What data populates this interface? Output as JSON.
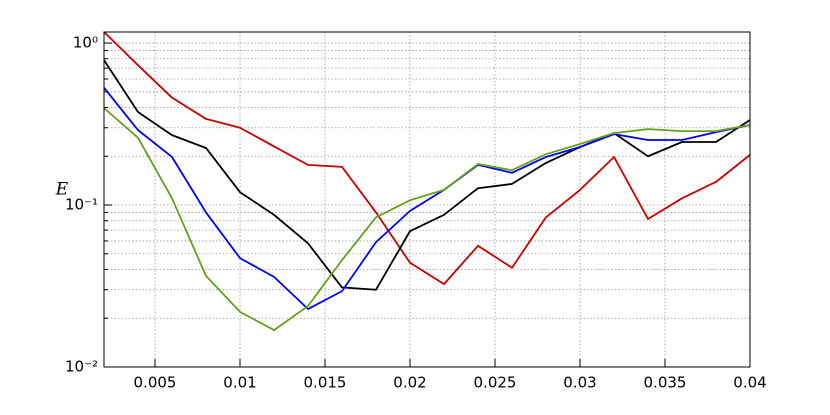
{
  "chart_data": {
    "type": "line",
    "ylabel": "E",
    "x": [
      0.002,
      0.004,
      0.006,
      0.008,
      0.01,
      0.012,
      0.014,
      0.016,
      0.018,
      0.02,
      0.022,
      0.024,
      0.026,
      0.028,
      0.03,
      0.032,
      0.034,
      0.036,
      0.038,
      0.04
    ],
    "series": [
      {
        "color": "#cc0000",
        "values": [
          1.17,
          0.73,
          0.46,
          0.34,
          0.3,
          0.23,
          0.177,
          0.172,
          0.09,
          0.044,
          0.0325,
          0.056,
          0.041,
          0.084,
          0.124,
          0.198,
          0.082,
          0.11,
          0.139,
          0.204
        ]
      },
      {
        "color": "#000000",
        "values": [
          0.785,
          0.375,
          0.27,
          0.225,
          0.12,
          0.087,
          0.058,
          0.031,
          0.03,
          0.069,
          0.087,
          0.127,
          0.135,
          0.182,
          0.228,
          0.278,
          0.2,
          0.245,
          0.245,
          0.335
        ]
      },
      {
        "color": "#0000ff",
        "values": [
          0.53,
          0.29,
          0.198,
          0.09,
          0.047,
          0.036,
          0.0228,
          0.0294,
          0.059,
          0.092,
          0.124,
          0.177,
          0.158,
          0.198,
          0.228,
          0.274,
          0.252,
          0.252,
          0.282,
          0.312
        ]
      },
      {
        "color": "#66a01e",
        "values": [
          0.397,
          0.26,
          0.11,
          0.0365,
          0.0219,
          0.0169,
          0.0238,
          0.0457,
          0.084,
          0.107,
          0.124,
          0.179,
          0.164,
          0.206,
          0.238,
          0.278,
          0.294,
          0.286,
          0.286,
          0.312
        ]
      }
    ],
    "xlim": [
      0.002,
      0.04
    ],
    "xticks": [
      0.005,
      0.01,
      0.015,
      0.02,
      0.025,
      0.03,
      0.035,
      0.04
    ],
    "ylim": [
      0.01,
      1.17
    ],
    "yscale": "log",
    "yticks": [
      {
        "value": 0.01,
        "label": "10⁻²"
      },
      {
        "value": 0.1,
        "label": "10⁻¹"
      },
      {
        "value": 1,
        "label": "10⁰"
      }
    ],
    "yminorticks": [
      0.02,
      0.03,
      0.04,
      0.05,
      0.06,
      0.07,
      0.08,
      0.09,
      0.2,
      0.3,
      0.4,
      0.5,
      0.6,
      0.7,
      0.8,
      0.9
    ],
    "grid": true
  }
}
